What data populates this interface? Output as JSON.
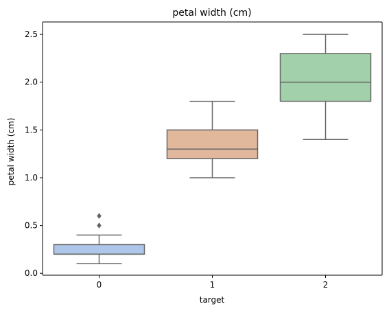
{
  "chart_data": {
    "type": "box",
    "title": "petal width (cm)",
    "xlabel": "target",
    "ylabel": "petal width (cm)",
    "categories": [
      "0",
      "1",
      "2"
    ],
    "ylim": [
      -0.02,
      2.63
    ],
    "yticks": [
      0.0,
      0.5,
      1.0,
      1.5,
      2.0,
      2.5
    ],
    "ytick_labels": [
      "0.0",
      "0.5",
      "1.0",
      "1.5",
      "2.0",
      "2.5"
    ],
    "grid": false,
    "boxes": [
      {
        "category": "0",
        "whisker_low": 0.1,
        "q1": 0.2,
        "median": 0.2,
        "q3": 0.3,
        "whisker_high": 0.4,
        "outliers": [
          0.5,
          0.6
        ],
        "color": "#aec7e8"
      },
      {
        "category": "1",
        "whisker_low": 1.0,
        "q1": 1.2,
        "median": 1.3,
        "q3": 1.5,
        "whisker_high": 1.8,
        "outliers": [],
        "color": "#e1b89c"
      },
      {
        "category": "2",
        "whisker_low": 1.4,
        "q1": 1.8,
        "median": 2.0,
        "q3": 2.3,
        "whisker_high": 2.5,
        "outliers": [],
        "color": "#a1d0aa"
      }
    ],
    "line_color": "#666666"
  }
}
